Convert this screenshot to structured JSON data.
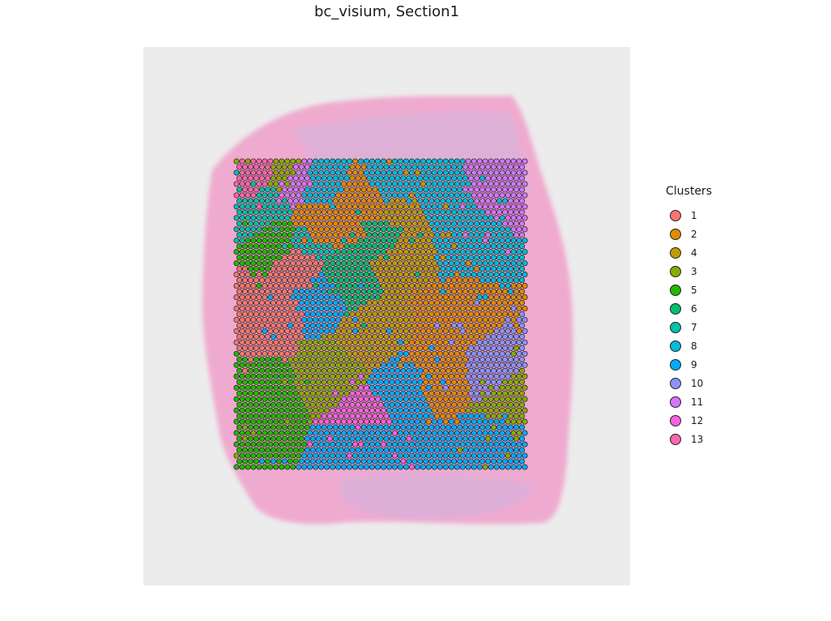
{
  "chart_data": {
    "type": "scatter",
    "title": "bc_visium, Section1",
    "legend_title": "Clusters",
    "legend_position": "right",
    "grid": false,
    "background": "H&E tissue image",
    "clusters": [
      {
        "name": "1",
        "color": "#F8766D"
      },
      {
        "name": "2",
        "color": "#E18A00"
      },
      {
        "name": "4",
        "color": "#BE9C00"
      },
      {
        "name": "3",
        "color": "#8CAB00"
      },
      {
        "name": "5",
        "color": "#24B700"
      },
      {
        "name": "6",
        "color": "#00BE70"
      },
      {
        "name": "7",
        "color": "#00C1AB"
      },
      {
        "name": "8",
        "color": "#00BBDA"
      },
      {
        "name": "9",
        "color": "#00ACFC"
      },
      {
        "name": "10",
        "color": "#8B93FF"
      },
      {
        "name": "11",
        "color": "#D575FE"
      },
      {
        "name": "12",
        "color": "#F962DD"
      },
      {
        "name": "13",
        "color": "#FF65AC"
      }
    ],
    "regions": [
      {
        "cluster": "5",
        "cx": 0.08,
        "cy": 0.8
      },
      {
        "cluster": "5",
        "cx": 0.15,
        "cy": 0.25
      },
      {
        "cluster": "1",
        "cx": 0.12,
        "cy": 0.48
      },
      {
        "cluster": "1",
        "cx": 0.22,
        "cy": 0.33
      },
      {
        "cluster": "6",
        "cx": 0.36,
        "cy": 0.4
      },
      {
        "cluster": "6",
        "cx": 0.55,
        "cy": 0.25
      },
      {
        "cluster": "8",
        "cx": 0.28,
        "cy": 0.08
      },
      {
        "cluster": "8",
        "cx": 0.55,
        "cy": 0.05
      },
      {
        "cluster": "8",
        "cx": 0.8,
        "cy": 0.25
      },
      {
        "cluster": "8",
        "cx": 0.7,
        "cy": 0.12
      },
      {
        "cluster": "4",
        "cx": 0.58,
        "cy": 0.19
      },
      {
        "cluster": "4",
        "cx": 0.57,
        "cy": 0.28
      },
      {
        "cluster": "4",
        "cx": 0.45,
        "cy": 0.58
      },
      {
        "cluster": "2",
        "cx": 0.78,
        "cy": 0.52
      },
      {
        "cluster": "2",
        "cx": 0.72,
        "cy": 0.68
      },
      {
        "cluster": "2",
        "cx": 0.27,
        "cy": 0.21
      },
      {
        "cluster": "2",
        "cx": 0.42,
        "cy": 0.14
      },
      {
        "cluster": "9",
        "cx": 0.55,
        "cy": 0.75
      },
      {
        "cluster": "9",
        "cx": 0.44,
        "cy": 0.9
      },
      {
        "cluster": "9",
        "cx": 0.9,
        "cy": 0.92
      },
      {
        "cluster": "9",
        "cx": 0.31,
        "cy": 0.44
      },
      {
        "cluster": "3",
        "cx": 0.18,
        "cy": 0.04
      },
      {
        "cluster": "3",
        "cx": 0.35,
        "cy": 0.7
      },
      {
        "cluster": "3",
        "cx": 0.94,
        "cy": 0.78
      },
      {
        "cluster": "11",
        "cx": 0.21,
        "cy": 0.06
      },
      {
        "cluster": "11",
        "cx": 0.92,
        "cy": 0.07
      },
      {
        "cluster": "12",
        "cx": 0.44,
        "cy": 0.82
      },
      {
        "cluster": "10",
        "cx": 0.88,
        "cy": 0.67
      },
      {
        "cluster": "7",
        "cx": 0.1,
        "cy": 0.16
      },
      {
        "cluster": "7",
        "cx": 0.24,
        "cy": 0.27
      },
      {
        "cluster": "13",
        "cx": 0.06,
        "cy": 0.03
      }
    ]
  }
}
